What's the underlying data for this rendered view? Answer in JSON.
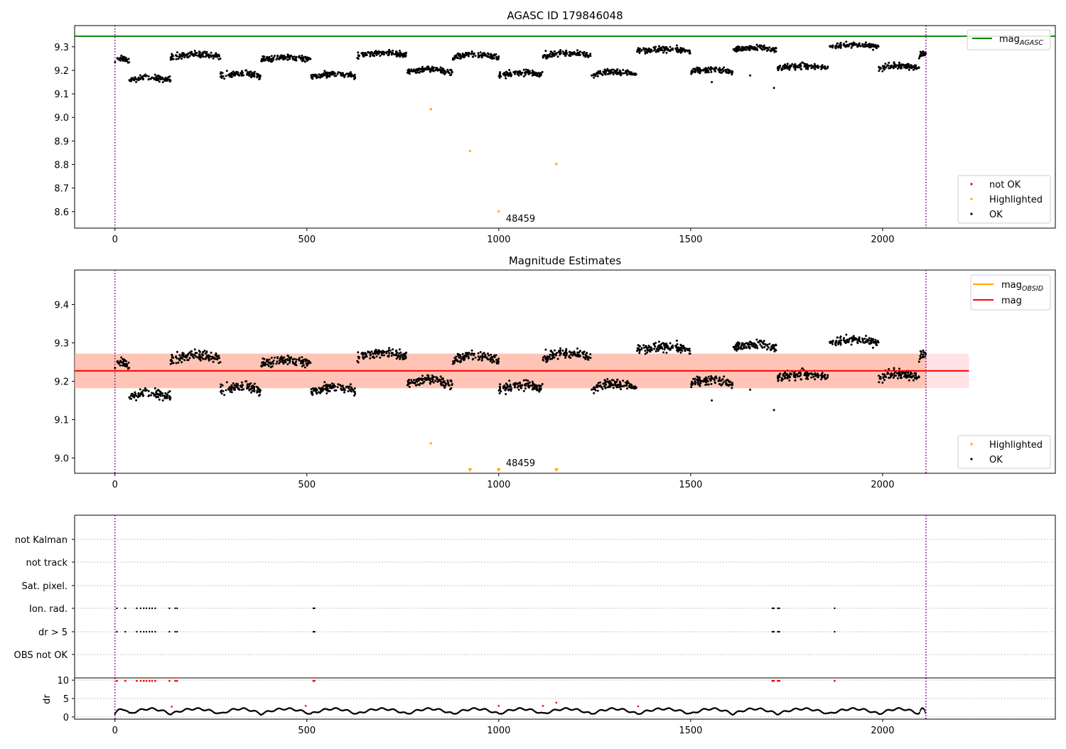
{
  "figure": {
    "title": "AGASC ID 179846048"
  },
  "chart_data": [
    {
      "id": "top",
      "type": "scatter",
      "title": "",
      "xlim": [
        -105,
        2450
      ],
      "ylim": [
        8.53,
        9.39
      ],
      "xticks": [
        0,
        500,
        1000,
        1500,
        2000
      ],
      "yticks": [
        8.6,
        8.7,
        8.8,
        8.9,
        9.0,
        9.1,
        9.2,
        9.3
      ],
      "vlines": [
        0,
        2113
      ],
      "hline": {
        "name": "mag_AGASC",
        "y": 9.345,
        "color": "#008000"
      },
      "highlighted": [
        {
          "x": 823,
          "y": 9.035
        },
        {
          "x": 925,
          "y": 8.858
        },
        {
          "x": 1150,
          "y": 8.802
        },
        {
          "x": 1000,
          "y": 8.601
        }
      ],
      "annotation": {
        "text": "48459",
        "x": 1000,
        "y": 8.6
      },
      "legend_line": {
        "items": [
          {
            "label_main": "mag",
            "label_sub": "AGASC",
            "color": "#008000"
          }
        ]
      },
      "legend_points": {
        "items": [
          {
            "label": "not OK",
            "color": "#ff0000"
          },
          {
            "label": "Highlighted",
            "color": "#ffa500"
          },
          {
            "label": "OK",
            "color": "#000000"
          }
        ]
      }
    },
    {
      "id": "mid",
      "type": "scatter",
      "title": "Magnitude Estimates",
      "xlim": [
        -105,
        2450
      ],
      "ylim": [
        8.96,
        9.49
      ],
      "xticks": [
        0,
        500,
        1000,
        1500,
        2000
      ],
      "yticks": [
        9.0,
        9.1,
        9.2,
        9.3,
        9.4
      ],
      "vlines": [
        0,
        2113
      ],
      "mag_line": {
        "y": 9.227,
        "color": "#ff0000"
      },
      "band_outer": {
        "x0": -105,
        "x1": 2225,
        "y0": 9.182,
        "y1": 9.272,
        "color": "#ffb6c1"
      },
      "band_inner": {
        "x0": -105,
        "x1": 2113,
        "y0": 9.182,
        "y1": 9.272,
        "color": "#ffa07a"
      },
      "highlighted": [
        {
          "x": 823,
          "y": 9.038
        }
      ],
      "highlighted_below": [
        {
          "x": 925
        },
        {
          "x": 1000
        },
        {
          "x": 1150
        }
      ],
      "annotation": {
        "text": "48459",
        "x": 1000,
        "y": 8.975
      },
      "legend_line": {
        "items": [
          {
            "label_main": "mag",
            "label_sub": "OBSID",
            "color": "#ffa500"
          },
          {
            "label_main": "mag",
            "label_sub": "",
            "color": "#ff0000"
          }
        ]
      },
      "legend_points": {
        "items": [
          {
            "label": "Highlighted",
            "color": "#ffa500"
          },
          {
            "label": "OK",
            "color": "#000000"
          }
        ]
      }
    },
    {
      "id": "flags",
      "type": "scatter",
      "xlim": [
        -105,
        2450
      ],
      "vlines": [
        0,
        2113
      ],
      "rows": [
        "not Kalman",
        "not track",
        "Sat. pixel.",
        "Ion. rad.",
        "dr > 5",
        "OBS not OK"
      ],
      "flagged_x": [
        5,
        27,
        57,
        67,
        75,
        82,
        90,
        97,
        105,
        142,
        157,
        162,
        517,
        520,
        1713,
        1717,
        1727,
        1731,
        1875
      ]
    },
    {
      "id": "dr",
      "type": "line",
      "ylabel": "dr",
      "xlim": [
        -105,
        2450
      ],
      "ylim": [
        -0.6,
        10.6
      ],
      "xticks": [
        0,
        500,
        1000,
        1500,
        2000
      ],
      "yticks": [
        0,
        5,
        10
      ],
      "vlines": [
        0,
        2113
      ],
      "red_points": [
        {
          "x": 148,
          "y": 2.8
        },
        {
          "x": 497,
          "y": 3.0
        },
        {
          "x": 1000,
          "y": 3.0
        },
        {
          "x": 1115,
          "y": 3.0
        },
        {
          "x": 1150,
          "y": 3.9
        },
        {
          "x": 1363,
          "y": 2.9
        }
      ]
    }
  ]
}
